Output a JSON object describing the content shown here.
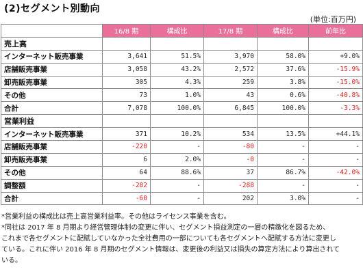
{
  "title": "(2)セグメント別動向",
  "unit": "(単位:百万円)",
  "columns": [
    "",
    "16/8 期",
    "構成比",
    "17/8 期",
    "構成比",
    "前年比"
  ],
  "sections": [
    {
      "label": "売上高",
      "rows": [
        {
          "name": "インターネット販売事業",
          "v16": "3,641",
          "r16": "51.5%",
          "v17": "3,970",
          "r17": "58.0%",
          "yoy": "+9.0%",
          "neg16": false,
          "neg17": false,
          "negyoy": false
        },
        {
          "name": "店舗販売事業",
          "v16": "3,058",
          "r16": "43.2%",
          "v17": "2,572",
          "r17": "37.6%",
          "yoy": "-15.9%",
          "neg16": false,
          "neg17": false,
          "negyoy": true
        },
        {
          "name": "卸売販売事業",
          "v16": "305",
          "r16": "4.3%",
          "v17": "259",
          "r17": "3.8%",
          "yoy": "-15.0%",
          "neg16": false,
          "neg17": false,
          "negyoy": true
        },
        {
          "name": "その他",
          "v16": "73",
          "r16": "1.0%",
          "v17": "43",
          "r17": "0.6%",
          "yoy": "-40.8%",
          "neg16": false,
          "neg17": false,
          "negyoy": true
        },
        {
          "name": "合計",
          "v16": "7,078",
          "r16": "100.0%",
          "v17": "6,845",
          "r17": "100.0%",
          "yoy": "-3.3%",
          "neg16": false,
          "neg17": false,
          "negyoy": true
        }
      ]
    },
    {
      "label": "営業利益",
      "rows": [
        {
          "name": "インターネット販売事業",
          "v16": "371",
          "r16": "10.2%",
          "v17": "534",
          "r17": "13.5%",
          "yoy": "+44.1%",
          "neg16": false,
          "neg17": false,
          "negyoy": false
        },
        {
          "name": "店舗販売事業",
          "v16": "-220",
          "r16": "-",
          "v17": "-80",
          "r17": "-",
          "yoy": "-",
          "neg16": true,
          "neg17": true,
          "negyoy": false
        },
        {
          "name": "卸売販売事業",
          "v16": "6",
          "r16": "2.0%",
          "v17": "-0",
          "r17": "-",
          "yoy": "-",
          "neg16": false,
          "neg17": true,
          "negyoy": false
        },
        {
          "name": "その他",
          "v16": "64",
          "r16": "88.6%",
          "v17": "37",
          "r17": "86.7%",
          "yoy": "-42.0%",
          "neg16": false,
          "neg17": false,
          "negyoy": true
        },
        {
          "name": "調整額",
          "v16": "-282",
          "r16": "-",
          "v17": "-288",
          "r17": "-",
          "yoy": "-",
          "neg16": true,
          "neg17": true,
          "negyoy": false
        },
        {
          "name": "合計",
          "v16": "-60",
          "r16": "-",
          "v17": "202",
          "r17": "3.0%",
          "yoy": "-",
          "neg16": true,
          "neg17": false,
          "negyoy": false
        }
      ]
    }
  ],
  "notes": [
    "*営業利益の構成比は売上高営業利益率。その他はライセンス事業を含む。",
    "*同社は 2017 年 8 月期より経営管理体制の変更に伴い、セグメント損益測定の一層の精緻化を図るため、",
    "これまで各セグメントに配賦していなかった全社費用の一部についても各セグメントへ配賦する方法に変更し",
    "ている。これに伴い 2016 年 8 月期のセグメント情報は、変更後の利益又は損失の算定方法により算出されて",
    "いる。"
  ],
  "colors": {
    "header_bg": "#e8709a",
    "negative": "#d81f1f",
    "border": "#8a8a8a"
  }
}
